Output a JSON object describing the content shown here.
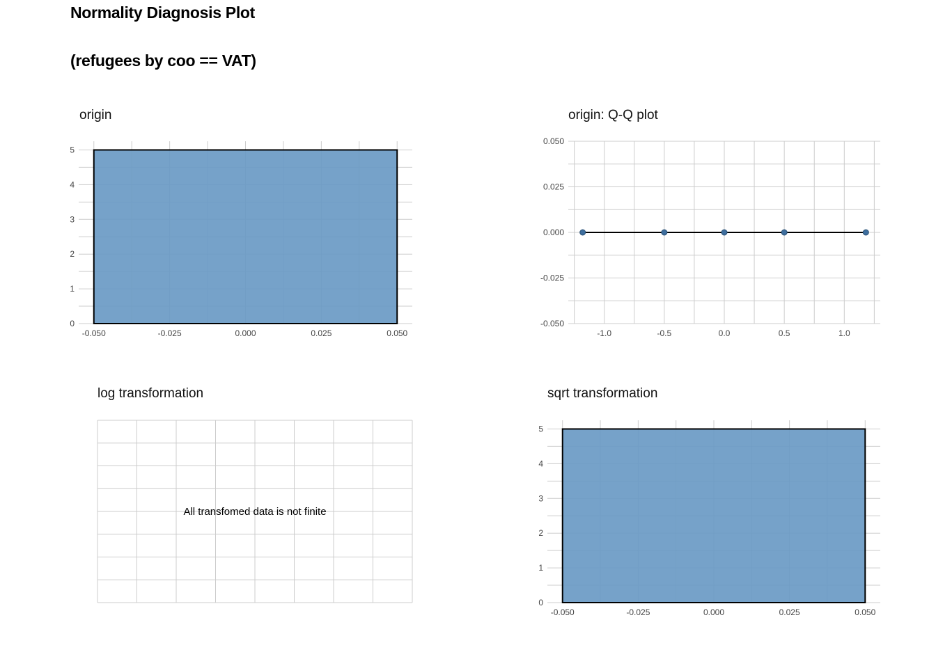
{
  "title": "Normality Diagnosis Plot",
  "subtitle": "(refugees by coo == VAT)",
  "colors": {
    "bar_fill": "#6A9AC4",
    "point": "#3E6E9E",
    "grid": "#CCCCCC",
    "line": "#000000"
  },
  "chart_data": [
    {
      "id": "origin",
      "title": "origin",
      "type": "bar",
      "bars": [
        {
          "x_min": -0.05,
          "x_max": 0.05,
          "count": 5
        }
      ],
      "x_ticks": [
        "-0.050",
        "-0.025",
        "0.000",
        "0.025",
        "0.050"
      ],
      "y_ticks": [
        "0",
        "1",
        "2",
        "3",
        "4",
        "5"
      ],
      "xlim": [
        -0.055,
        0.055
      ],
      "ylim": [
        0,
        5.25
      ],
      "grid": true
    },
    {
      "id": "qq",
      "title": "origin: Q-Q plot",
      "type": "scatter",
      "x": [
        -1.18,
        -0.5,
        0.0,
        0.5,
        1.18
      ],
      "y": [
        0,
        0,
        0,
        0,
        0
      ],
      "reference_line": {
        "x": [
          -1.18,
          1.18
        ],
        "y": [
          0,
          0
        ]
      },
      "x_ticks": [
        "-1.0",
        "-0.5",
        "0.0",
        "0.5",
        "1.0"
      ],
      "y_ticks": [
        "-0.050",
        "-0.025",
        "0.000",
        "0.025",
        "0.050"
      ],
      "xlim": [
        -1.3,
        1.3
      ],
      "ylim": [
        -0.05,
        0.05
      ],
      "grid": true
    },
    {
      "id": "log",
      "title": "log transformation",
      "type": "bar",
      "message": "All transfomed data is not finite",
      "grid": true
    },
    {
      "id": "sqrt",
      "title": "sqrt transformation",
      "type": "bar",
      "bars": [
        {
          "x_min": -0.05,
          "x_max": 0.05,
          "count": 5
        }
      ],
      "x_ticks": [
        "-0.050",
        "-0.025",
        "0.000",
        "0.025",
        "0.050"
      ],
      "y_ticks": [
        "0",
        "1",
        "2",
        "3",
        "4",
        "5"
      ],
      "xlim": [
        -0.055,
        0.055
      ],
      "ylim": [
        0,
        5.25
      ],
      "grid": true
    }
  ]
}
